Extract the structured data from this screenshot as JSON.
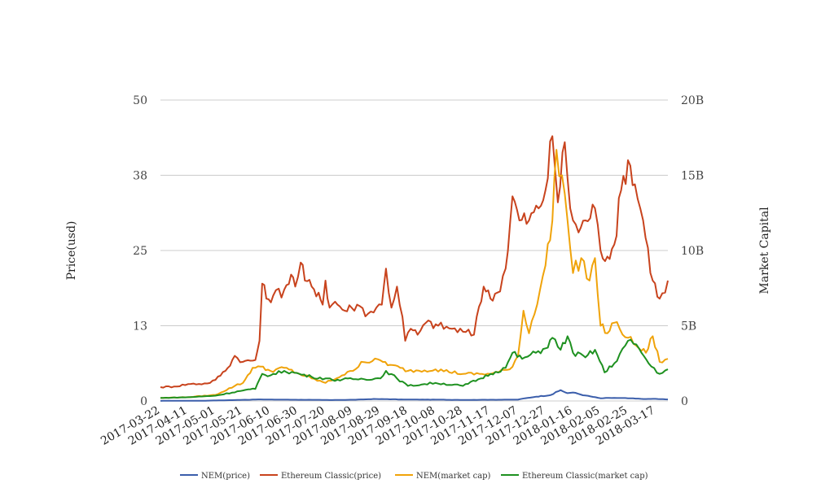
{
  "chart_data": {
    "type": "line",
    "ylabel_left": "Price(usd)",
    "ylabel_right": "Market Capital",
    "y_left_ticks": [
      "50",
      "38",
      "25",
      "13",
      "0"
    ],
    "y_left_tick_values": [
      50,
      37.5,
      25,
      12.5,
      0
    ],
    "y_right_ticks": [
      "20B",
      "15B",
      "10B",
      "5B",
      "0"
    ],
    "y_right_tick_values": [
      20,
      15,
      10,
      5,
      0
    ],
    "y_left_range": [
      0,
      50
    ],
    "y_right_range": [
      0,
      20
    ],
    "x_range": [
      "2017-03-22",
      "2018-03-26"
    ],
    "x_ticks": [
      "2017-03-22",
      "2017-04-11",
      "2017-05-01",
      "2017-05-21",
      "2017-06-10",
      "2017-06-30",
      "2017-07-20",
      "2017-08-09",
      "2017-08-29",
      "2017-09-18",
      "2017-10-08",
      "2017-10-28",
      "2017-11-17",
      "2017-12-07",
      "2017-12-27",
      "2018-01-16",
      "2018-02-05",
      "2018-02-25",
      "2018-03-17"
    ],
    "grid": true,
    "legend_position": "bottom",
    "series": [
      {
        "name": "NEM(price)",
        "color": "#3b5eab",
        "axis": "left",
        "points": [
          [
            "2017-03-22",
            0.02
          ],
          [
            "2017-04-20",
            0.03
          ],
          [
            "2017-05-15",
            0.15
          ],
          [
            "2017-06-01",
            0.25
          ],
          [
            "2017-06-15",
            0.22
          ],
          [
            "2017-07-10",
            0.19
          ],
          [
            "2017-07-25",
            0.15
          ],
          [
            "2017-08-09",
            0.2
          ],
          [
            "2017-08-26",
            0.33
          ],
          [
            "2017-09-15",
            0.24
          ],
          [
            "2017-10-10",
            0.21
          ],
          [
            "2017-10-28",
            0.18
          ],
          [
            "2017-11-17",
            0.2
          ],
          [
            "2017-12-07",
            0.22
          ],
          [
            "2017-12-12",
            0.45
          ],
          [
            "2017-12-20",
            0.7
          ],
          [
            "2017-12-31",
            1.0
          ],
          [
            "2018-01-07",
            1.8
          ],
          [
            "2018-01-12",
            1.3
          ],
          [
            "2018-01-16",
            1.4
          ],
          [
            "2018-01-25",
            0.9
          ],
          [
            "2018-02-05",
            0.45
          ],
          [
            "2018-02-15",
            0.5
          ],
          [
            "2018-02-25",
            0.45
          ],
          [
            "2018-03-10",
            0.32
          ],
          [
            "2018-03-17",
            0.35
          ],
          [
            "2018-03-26",
            0.25
          ]
        ]
      },
      {
        "name": "Ethereum Classic(price)",
        "color": "#c8431d",
        "axis": "left",
        "points": [
          [
            "2017-03-22",
            2.3
          ],
          [
            "2017-04-01",
            2.4
          ],
          [
            "2017-04-11",
            2.8
          ],
          [
            "2017-04-25",
            2.9
          ],
          [
            "2017-05-01",
            3.5
          ],
          [
            "2017-05-10",
            5.5
          ],
          [
            "2017-05-15",
            7.5
          ],
          [
            "2017-05-21",
            6.5
          ],
          [
            "2017-05-30",
            6.8
          ],
          [
            "2017-06-02",
            10
          ],
          [
            "2017-06-04",
            19.5
          ],
          [
            "2017-06-07",
            17
          ],
          [
            "2017-06-12",
            17.5
          ],
          [
            "2017-06-20",
            18.5
          ],
          [
            "2017-06-25",
            21
          ],
          [
            "2017-06-28",
            19
          ],
          [
            "2017-07-02",
            23
          ],
          [
            "2017-07-05",
            20
          ],
          [
            "2017-07-10",
            19
          ],
          [
            "2017-07-15",
            18
          ],
          [
            "2017-07-18",
            16
          ],
          [
            "2017-07-20",
            20
          ],
          [
            "2017-07-23",
            15.5
          ],
          [
            "2017-07-27",
            16.5
          ],
          [
            "2017-08-03",
            15
          ],
          [
            "2017-08-08",
            15.5
          ],
          [
            "2017-08-12",
            16
          ],
          [
            "2017-08-20",
            14.5
          ],
          [
            "2017-08-26",
            15.5
          ],
          [
            "2017-08-30",
            16
          ],
          [
            "2017-09-02",
            22
          ],
          [
            "2017-09-06",
            15.5
          ],
          [
            "2017-09-10",
            19
          ],
          [
            "2017-09-14",
            14
          ],
          [
            "2017-09-16",
            10
          ],
          [
            "2017-09-20",
            12
          ],
          [
            "2017-09-25",
            11
          ],
          [
            "2017-10-01",
            13
          ],
          [
            "2017-10-10",
            12.5
          ],
          [
            "2017-10-20",
            12
          ],
          [
            "2017-10-28",
            11.5
          ],
          [
            "2017-11-05",
            11
          ],
          [
            "2017-11-07",
            14
          ],
          [
            "2017-11-12",
            19
          ],
          [
            "2017-11-17",
            17
          ],
          [
            "2017-11-22",
            18
          ],
          [
            "2017-11-28",
            22
          ],
          [
            "2017-12-03",
            34
          ],
          [
            "2017-12-08",
            30
          ],
          [
            "2017-12-15",
            30
          ],
          [
            "2017-12-22",
            32
          ],
          [
            "2017-12-27",
            35
          ],
          [
            "2018-01-01",
            44
          ],
          [
            "2018-01-05",
            33
          ],
          [
            "2018-01-10",
            43
          ],
          [
            "2018-01-14",
            32
          ],
          [
            "2018-01-20",
            28
          ],
          [
            "2018-01-25",
            30
          ],
          [
            "2018-02-01",
            32
          ],
          [
            "2018-02-05",
            25
          ],
          [
            "2018-02-10",
            24
          ],
          [
            "2018-02-15",
            26
          ],
          [
            "2018-02-20",
            35
          ],
          [
            "2018-02-25",
            40
          ],
          [
            "2018-03-02",
            36
          ],
          [
            "2018-03-08",
            30
          ],
          [
            "2018-03-15",
            20
          ],
          [
            "2018-03-20",
            17
          ],
          [
            "2018-03-24",
            18
          ],
          [
            "2018-03-26",
            20
          ]
        ]
      },
      {
        "name": "NEM(market cap)",
        "color": "#f0a30a",
        "axis": "right",
        "points": [
          [
            "2017-03-22",
            0.2
          ],
          [
            "2017-04-11",
            0.25
          ],
          [
            "2017-05-01",
            0.4
          ],
          [
            "2017-05-15",
            1.0
          ],
          [
            "2017-05-21",
            1.2
          ],
          [
            "2017-05-28",
            2.2
          ],
          [
            "2017-06-01",
            2.3
          ],
          [
            "2017-06-10",
            2.0
          ],
          [
            "2017-06-20",
            2.2
          ],
          [
            "2017-07-01",
            1.8
          ],
          [
            "2017-07-10",
            1.5
          ],
          [
            "2017-07-20",
            1.2
          ],
          [
            "2017-08-01",
            1.7
          ],
          [
            "2017-08-09",
            2.0
          ],
          [
            "2017-08-15",
            2.6
          ],
          [
            "2017-08-29",
            2.7
          ],
          [
            "2017-09-05",
            2.4
          ],
          [
            "2017-09-18",
            2.0
          ],
          [
            "2017-10-08",
            2.1
          ],
          [
            "2017-10-28",
            1.8
          ],
          [
            "2017-11-17",
            1.8
          ],
          [
            "2017-12-01",
            2.1
          ],
          [
            "2017-12-07",
            3.0
          ],
          [
            "2017-12-11",
            6.0
          ],
          [
            "2017-12-15",
            4.5
          ],
          [
            "2017-12-27",
            9.0
          ],
          [
            "2018-01-01",
            12.0
          ],
          [
            "2018-01-04",
            16.7
          ],
          [
            "2018-01-08",
            15.0
          ],
          [
            "2018-01-12",
            12.0
          ],
          [
            "2018-01-16",
            8.5
          ],
          [
            "2018-01-22",
            9.5
          ],
          [
            "2018-01-28",
            8.0
          ],
          [
            "2018-02-01",
            9.5
          ],
          [
            "2018-02-05",
            5.0
          ],
          [
            "2018-02-10",
            4.5
          ],
          [
            "2018-02-15",
            5.2
          ],
          [
            "2018-02-25",
            4.2
          ],
          [
            "2018-03-05",
            3.5
          ],
          [
            "2018-03-10",
            3.2
          ],
          [
            "2018-03-15",
            4.3
          ],
          [
            "2018-03-20",
            2.6
          ],
          [
            "2018-03-26",
            2.8
          ]
        ]
      },
      {
        "name": "Ethereum Classic(market cap)",
        "color": "#1e9120",
        "axis": "right",
        "points": [
          [
            "2017-03-22",
            0.2
          ],
          [
            "2017-04-11",
            0.25
          ],
          [
            "2017-05-01",
            0.35
          ],
          [
            "2017-05-21",
            0.7
          ],
          [
            "2017-05-30",
            0.8
          ],
          [
            "2017-06-04",
            1.8
          ],
          [
            "2017-06-10",
            1.7
          ],
          [
            "2017-06-20",
            2.0
          ],
          [
            "2017-07-01",
            1.8
          ],
          [
            "2017-07-10",
            1.6
          ],
          [
            "2017-07-20",
            1.5
          ],
          [
            "2017-07-25",
            1.4
          ],
          [
            "2017-08-09",
            1.45
          ],
          [
            "2017-08-29",
            1.5
          ],
          [
            "2017-09-02",
            2.0
          ],
          [
            "2017-09-10",
            1.5
          ],
          [
            "2017-09-18",
            1.0
          ],
          [
            "2017-10-08",
            1.2
          ],
          [
            "2017-10-28",
            1.0
          ],
          [
            "2017-11-10",
            1.5
          ],
          [
            "2017-11-17",
            1.8
          ],
          [
            "2017-11-28",
            2.2
          ],
          [
            "2017-12-03",
            3.2
          ],
          [
            "2017-12-10",
            2.8
          ],
          [
            "2017-12-20",
            3.2
          ],
          [
            "2017-12-27",
            3.5
          ],
          [
            "2018-01-01",
            4.2
          ],
          [
            "2018-01-07",
            3.4
          ],
          [
            "2018-01-12",
            4.3
          ],
          [
            "2018-01-16",
            3.2
          ],
          [
            "2018-01-25",
            2.9
          ],
          [
            "2018-02-01",
            3.4
          ],
          [
            "2018-02-08",
            1.9
          ],
          [
            "2018-02-15",
            2.5
          ],
          [
            "2018-02-25",
            4.0
          ],
          [
            "2018-03-05",
            3.5
          ],
          [
            "2018-03-12",
            2.5
          ],
          [
            "2018-03-20",
            1.8
          ],
          [
            "2018-03-26",
            2.1
          ]
        ]
      }
    ]
  }
}
